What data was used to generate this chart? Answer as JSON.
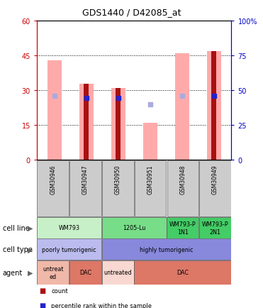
{
  "title": "GDS1440 / D42085_at",
  "samples": [
    "GSM30946",
    "GSM30947",
    "GSM30950",
    "GSM30951",
    "GSM30948",
    "GSM30949"
  ],
  "count_values": [
    0,
    33,
    31,
    0,
    0,
    47
  ],
  "pink_bar_values": [
    43,
    33,
    31,
    16,
    46,
    47
  ],
  "lightblue_rank_values": [
    46,
    0,
    0,
    40,
    46,
    0
  ],
  "blue_dot_values": [
    0,
    44.5,
    44.5,
    0,
    0,
    46
  ],
  "blue_dot_show": [
    0,
    1,
    1,
    0,
    0,
    1
  ],
  "lightblue_show": [
    1,
    0,
    0,
    1,
    1,
    0
  ],
  "ylim_left": [
    0,
    60
  ],
  "ylim_right": [
    0,
    100
  ],
  "yticks_left": [
    0,
    15,
    30,
    45,
    60
  ],
  "yticks_right": [
    0,
    25,
    50,
    75,
    100
  ],
  "ytick_right_labels": [
    "0",
    "25",
    "50",
    "75",
    "100%"
  ],
  "cell_line_spans": [
    [
      0,
      2,
      "WM793",
      "#c8f0c8"
    ],
    [
      2,
      4,
      "1205-Lu",
      "#77dd88"
    ],
    [
      4,
      5,
      "WM793-P\n1N1",
      "#44cc66"
    ],
    [
      5,
      6,
      "WM793-P\n2N1",
      "#44cc66"
    ]
  ],
  "cell_type_spans": [
    [
      0,
      2,
      "poorly tumorigenic",
      "#bbbbee"
    ],
    [
      2,
      6,
      "highly tumorigenic",
      "#8888dd"
    ]
  ],
  "agent_spans": [
    [
      0,
      1,
      "untreat\ned",
      "#f0b8a8"
    ],
    [
      1,
      2,
      "DAC",
      "#dd7766"
    ],
    [
      2,
      3,
      "untreated",
      "#f8d8d0"
    ],
    [
      3,
      6,
      "DAC",
      "#dd7766"
    ]
  ],
  "dark_red": "#aa1111",
  "pink": "#ffaaaa",
  "blue": "#2222cc",
  "lightblue": "#aaaadd",
  "grid_color": "#555555",
  "left_tick_color": "#cc0000",
  "right_tick_color": "#0000cc"
}
